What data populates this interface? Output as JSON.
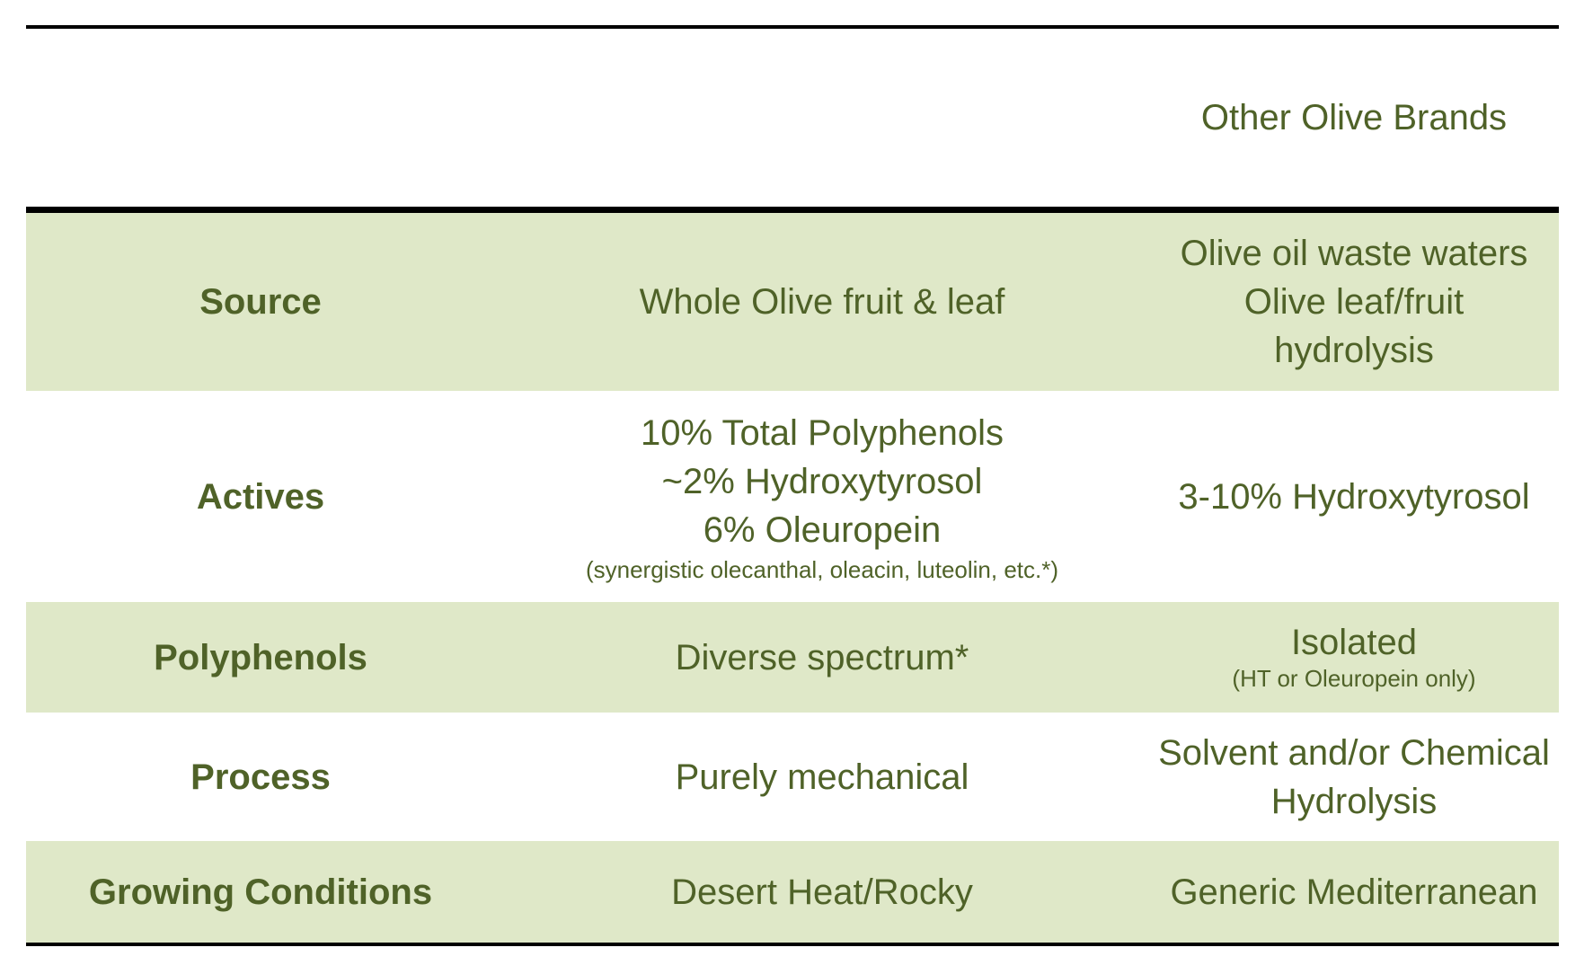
{
  "header": {
    "col1": "",
    "col2": "",
    "col3": "Other Olive Brands"
  },
  "rows": [
    {
      "label": "Source",
      "ours": [
        "Whole Olive fruit & leaf"
      ],
      "others": [
        "Olive oil waste waters",
        "Olive leaf/fruit",
        "hydrolysis"
      ]
    },
    {
      "label": "Actives",
      "ours": [
        "10% Total Polyphenols",
        "~2% Hydroxytyrosol",
        "6% Oleuropein"
      ],
      "ours_note": "(synergistic olecanthal, oleacin, luteolin, etc.*)",
      "others": [
        "3-10% Hydroxytyrosol"
      ]
    },
    {
      "label": "Polyphenols",
      "ours": [
        "Diverse spectrum*"
      ],
      "others": [
        "Isolated"
      ],
      "others_note": "(HT or Oleuropein only)"
    },
    {
      "label": "Process",
      "ours": [
        "Purely mechanical"
      ],
      "others": [
        "Solvent and/or Chemical",
        "Hydrolysis"
      ]
    },
    {
      "label": "Growing Conditions",
      "ours": [
        "Desert Heat/Rocky"
      ],
      "others": [
        "Generic Mediterranean"
      ]
    }
  ],
  "colors": {
    "text": "#4f6228",
    "shade": "#dfe8c8",
    "rule": "#000000"
  }
}
